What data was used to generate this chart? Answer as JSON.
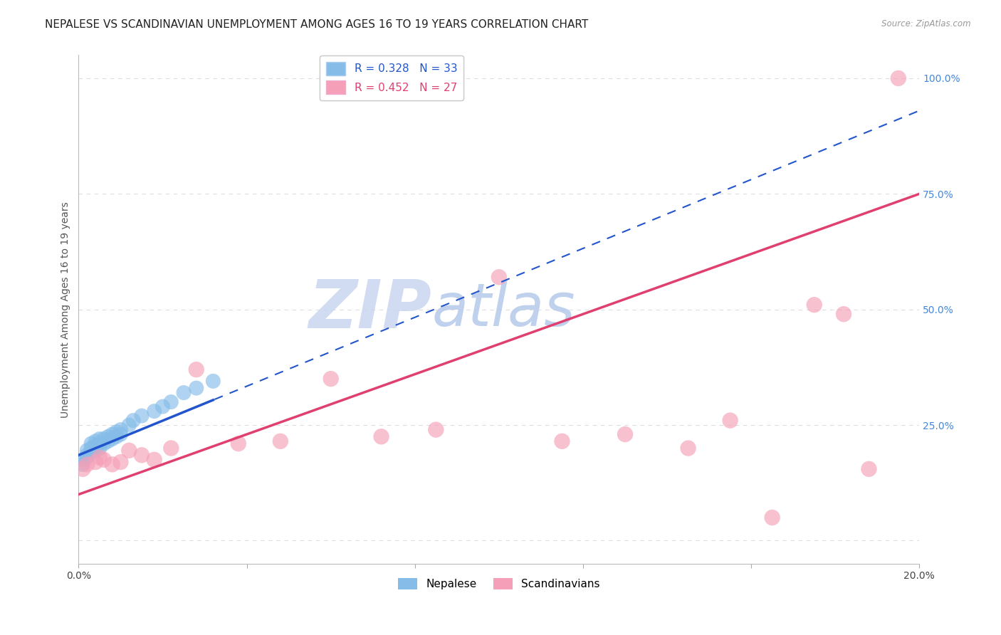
{
  "title": "NEPALESE VS SCANDINAVIAN UNEMPLOYMENT AMONG AGES 16 TO 19 YEARS CORRELATION CHART",
  "source": "Source: ZipAtlas.com",
  "ylabel": "Unemployment Among Ages 16 to 19 years",
  "nepalese_R": 0.328,
  "nepalese_N": 33,
  "scandinavian_R": 0.452,
  "scandinavian_N": 27,
  "nepalese_color": "#85bce8",
  "scandinavian_color": "#f5a0b8",
  "nepalese_line_color": "#2255cc",
  "scandinavian_line_color": "#e04070",
  "watermark_zip": "ZIP",
  "watermark_atlas": "atlas",
  "watermark_zip_color": "#c5d8f0",
  "watermark_atlas_color": "#b8cce8",
  "xlim": [
    0.0,
    0.2
  ],
  "ylim": [
    -0.05,
    1.05
  ],
  "xticks": [
    0.0,
    0.04,
    0.08,
    0.12,
    0.16,
    0.2
  ],
  "yticks": [
    0.0,
    0.25,
    0.5,
    0.75,
    1.0
  ],
  "background_color": "#ffffff",
  "grid_color": "#dddddd",
  "title_fontsize": 11,
  "axis_label_fontsize": 10,
  "tick_fontsize": 10,
  "legend_fontsize": 11,
  "nepalese_x": [
    0.001,
    0.001,
    0.002,
    0.002,
    0.002,
    0.003,
    0.003,
    0.003,
    0.004,
    0.004,
    0.004,
    0.005,
    0.005,
    0.005,
    0.006,
    0.006,
    0.007,
    0.007,
    0.008,
    0.008,
    0.009,
    0.009,
    0.01,
    0.01,
    0.012,
    0.013,
    0.015,
    0.018,
    0.02,
    0.022,
    0.025,
    0.028,
    0.032
  ],
  "nepalese_y": [
    0.165,
    0.175,
    0.18,
    0.185,
    0.195,
    0.19,
    0.2,
    0.21,
    0.195,
    0.205,
    0.215,
    0.2,
    0.21,
    0.22,
    0.21,
    0.22,
    0.215,
    0.225,
    0.22,
    0.23,
    0.225,
    0.235,
    0.23,
    0.24,
    0.25,
    0.26,
    0.27,
    0.28,
    0.29,
    0.3,
    0.32,
    0.33,
    0.345
  ],
  "scandinavian_x": [
    0.001,
    0.002,
    0.004,
    0.005,
    0.006,
    0.008,
    0.01,
    0.012,
    0.015,
    0.018,
    0.022,
    0.028,
    0.038,
    0.048,
    0.06,
    0.072,
    0.085,
    0.1,
    0.115,
    0.13,
    0.145,
    0.155,
    0.165,
    0.175,
    0.182,
    0.188,
    0.195
  ],
  "scandinavian_y": [
    0.155,
    0.165,
    0.17,
    0.18,
    0.175,
    0.165,
    0.17,
    0.195,
    0.185,
    0.175,
    0.2,
    0.37,
    0.21,
    0.215,
    0.35,
    0.225,
    0.24,
    0.57,
    0.215,
    0.23,
    0.2,
    0.26,
    0.05,
    0.51,
    0.49,
    0.155,
    1.0
  ],
  "nep_trend_x0": 0.0,
  "nep_trend_y0": 0.185,
  "nep_trend_x1": 0.2,
  "nep_trend_y1": 0.93,
  "scand_trend_x0": 0.0,
  "scand_trend_y0": 0.1,
  "scand_trend_x1": 0.2,
  "scand_trend_y1": 0.75
}
